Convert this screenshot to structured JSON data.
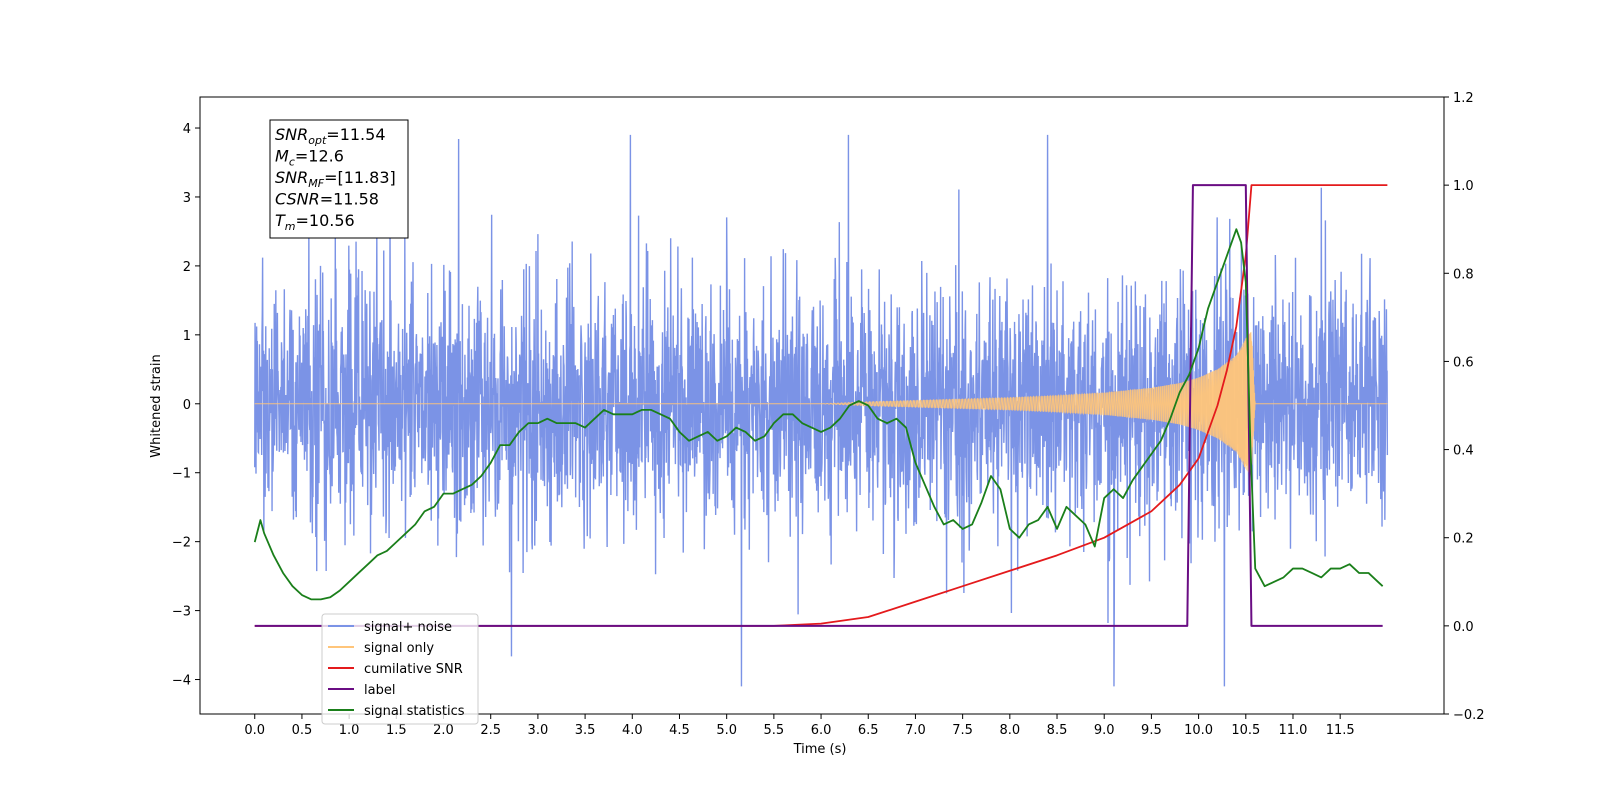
{
  "chart_data": {
    "type": "line",
    "xlabel": "Time (s)",
    "ylabel": "Whitened strain",
    "xlim": [
      -0.58,
      12.6
    ],
    "ylim": [
      -4.5,
      4.45
    ],
    "y2lim": [
      -0.2,
      1.2
    ],
    "grid": false,
    "legend_position": "lower-left",
    "x_ticks": [
      "0.0",
      "0.5",
      "1.0",
      "1.5",
      "2.0",
      "2.5",
      "3.0",
      "3.5",
      "4.0",
      "4.5",
      "5.0",
      "5.5",
      "6.0",
      "6.5",
      "7.0",
      "7.5",
      "8.0",
      "8.5",
      "9.0",
      "9.5",
      "10.0",
      "10.5",
      "11.0",
      "11.5"
    ],
    "y_ticks": [
      "4",
      "3",
      "2",
      "1",
      "0",
      "−1",
      "−2",
      "−3",
      "−4"
    ],
    "y2_ticks": [
      "1.2",
      "1.0",
      "0.8",
      "0.6",
      "0.4",
      "0.2",
      "0.0",
      "−0.2"
    ],
    "annotation": {
      "lines": [
        {
          "base": "SNR",
          "sub": "opt",
          "rest": "=11.54"
        },
        {
          "base": "M",
          "sub": "c",
          "rest": "=12.6"
        },
        {
          "base": "SNR",
          "sub": "MF",
          "rest": "=[11.83]"
        },
        {
          "base": "CSNR",
          "sub": "",
          "rest": "=11.58"
        },
        {
          "base": "T",
          "sub": "m",
          "rest": "=10.56"
        }
      ]
    },
    "legend": [
      {
        "label": "signal+ noise",
        "color": "#7b93e6"
      },
      {
        "label": "signal only",
        "color": "#ffc57a"
      },
      {
        "label": "cumilative SNR",
        "color": "#e41a1c"
      },
      {
        "label": "label",
        "color": "#6a0d83"
      },
      {
        "label": "signal statistics",
        "color": "#1a7f1a"
      }
    ],
    "series": [
      {
        "name": "signal+ noise",
        "color": "#7b93e6",
        "description": "noisy whitened strain, amplitude mostly within ±2.5 with spikes to ±3.9",
        "x_range": [
          0.0,
          12.0
        ],
        "y_range": [
          -4.1,
          3.9
        ]
      },
      {
        "name": "signal only",
        "color": "#ffc57a",
        "description": "chirp with growing amplitude, peak near t=10.56",
        "envelope": {
          "x": [
            0.0,
            6.0,
            6.5,
            7.0,
            7.5,
            8.0,
            8.5,
            9.0,
            9.5,
            9.8,
            10.0,
            10.2,
            10.4,
            10.5,
            10.56,
            10.6,
            12.0
          ],
          "y": [
            0.0,
            0.0,
            0.03,
            0.05,
            0.07,
            0.09,
            0.12,
            0.16,
            0.23,
            0.3,
            0.38,
            0.5,
            0.7,
            0.95,
            1.05,
            0.0,
            0.0
          ]
        }
      },
      {
        "name": "cumilative SNR",
        "color": "#e41a1c",
        "axis": "right",
        "x": [
          0.0,
          5.5,
          6.0,
          6.5,
          7.0,
          7.5,
          8.0,
          8.5,
          9.0,
          9.5,
          9.8,
          10.0,
          10.2,
          10.3,
          10.4,
          10.5,
          10.56,
          12.0
        ],
        "y": [
          0.0,
          0.0,
          0.005,
          0.02,
          0.055,
          0.09,
          0.125,
          0.16,
          0.2,
          0.26,
          0.32,
          0.38,
          0.5,
          0.58,
          0.68,
          0.84,
          1.0,
          1.0
        ]
      },
      {
        "name": "label",
        "color": "#6a0d83",
        "axis": "right",
        "x": [
          0.0,
          9.88,
          9.94,
          10.5,
          10.56,
          11.95
        ],
        "y": [
          0.0,
          0.0,
          1.0,
          1.0,
          0.0,
          0.0
        ]
      },
      {
        "name": "signal statistics",
        "color": "#1a7f1a",
        "axis": "right",
        "x": [
          0.0,
          0.06,
          0.1,
          0.2,
          0.3,
          0.4,
          0.5,
          0.6,
          0.7,
          0.8,
          0.9,
          1.0,
          1.1,
          1.2,
          1.3,
          1.4,
          1.5,
          1.6,
          1.7,
          1.8,
          1.9,
          2.0,
          2.1,
          2.2,
          2.3,
          2.4,
          2.5,
          2.6,
          2.7,
          2.8,
          2.9,
          3.0,
          3.1,
          3.2,
          3.3,
          3.4,
          3.5,
          3.6,
          3.7,
          3.8,
          3.9,
          4.0,
          4.1,
          4.2,
          4.3,
          4.4,
          4.5,
          4.6,
          4.7,
          4.8,
          4.9,
          5.0,
          5.1,
          5.2,
          5.3,
          5.4,
          5.5,
          5.6,
          5.7,
          5.8,
          5.9,
          6.0,
          6.1,
          6.2,
          6.3,
          6.4,
          6.5,
          6.6,
          6.7,
          6.8,
          6.9,
          7.0,
          7.1,
          7.2,
          7.3,
          7.4,
          7.5,
          7.6,
          7.7,
          7.8,
          7.9,
          8.0,
          8.1,
          8.2,
          8.3,
          8.4,
          8.5,
          8.6,
          8.7,
          8.8,
          8.9,
          9.0,
          9.1,
          9.2,
          9.3,
          9.4,
          9.5,
          9.6,
          9.7,
          9.8,
          9.9,
          10.0,
          10.1,
          10.2,
          10.3,
          10.4,
          10.45,
          10.5,
          10.55,
          10.6,
          10.7,
          10.8,
          10.9,
          11.0,
          11.1,
          11.2,
          11.3,
          11.4,
          11.5,
          11.6,
          11.7,
          11.8,
          11.9,
          11.95
        ],
        "y": [
          0.19,
          0.24,
          0.21,
          0.16,
          0.12,
          0.09,
          0.07,
          0.06,
          0.06,
          0.065,
          0.08,
          0.1,
          0.12,
          0.14,
          0.16,
          0.17,
          0.19,
          0.21,
          0.23,
          0.26,
          0.27,
          0.3,
          0.3,
          0.31,
          0.32,
          0.34,
          0.37,
          0.41,
          0.41,
          0.44,
          0.46,
          0.46,
          0.47,
          0.46,
          0.46,
          0.46,
          0.45,
          0.47,
          0.49,
          0.48,
          0.48,
          0.48,
          0.49,
          0.49,
          0.48,
          0.47,
          0.44,
          0.42,
          0.43,
          0.44,
          0.42,
          0.43,
          0.45,
          0.44,
          0.42,
          0.43,
          0.46,
          0.48,
          0.48,
          0.46,
          0.45,
          0.44,
          0.45,
          0.47,
          0.5,
          0.51,
          0.5,
          0.47,
          0.46,
          0.47,
          0.45,
          0.37,
          0.32,
          0.27,
          0.23,
          0.24,
          0.22,
          0.23,
          0.28,
          0.34,
          0.31,
          0.22,
          0.2,
          0.23,
          0.24,
          0.27,
          0.22,
          0.27,
          0.25,
          0.23,
          0.18,
          0.29,
          0.31,
          0.29,
          0.33,
          0.36,
          0.39,
          0.42,
          0.47,
          0.53,
          0.57,
          0.63,
          0.72,
          0.78,
          0.84,
          0.9,
          0.87,
          0.78,
          0.4,
          0.13,
          0.09,
          0.1,
          0.11,
          0.13,
          0.13,
          0.12,
          0.11,
          0.13,
          0.13,
          0.14,
          0.12,
          0.12,
          0.1,
          0.09
        ]
      }
    ]
  }
}
